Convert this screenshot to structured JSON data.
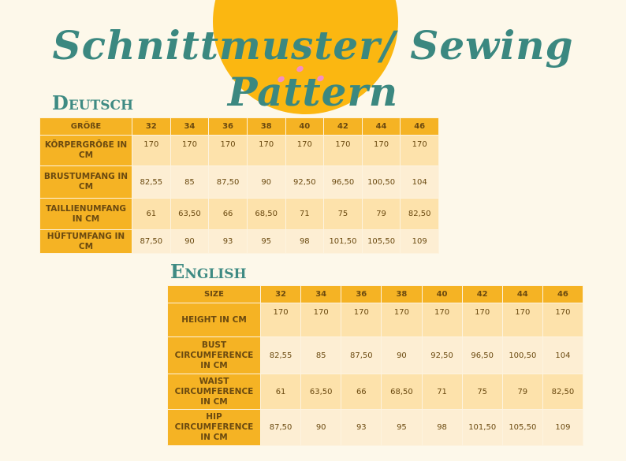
{
  "header": {
    "title": "Schnittmuster/ Sewing Pattern"
  },
  "sections": [
    {
      "heading": "Deutsch",
      "table": {
        "columns": [
          "GRÖßE",
          "32",
          "34",
          "36",
          "38",
          "40",
          "42",
          "44",
          "46"
        ],
        "rows": [
          [
            "KÖRPERGRÖßE IN CM",
            "170",
            "170",
            "170",
            "170",
            "170",
            "170",
            "170",
            "170"
          ],
          [
            "BRUSTUMFANG IN CM",
            "82,55",
            "85",
            "87,50",
            "90",
            "92,50",
            "96,50",
            "100,50",
            "104"
          ],
          [
            "TAILLIENUMFANG IN CM",
            "61",
            "63,50",
            "66",
            "68,50",
            "71",
            "75",
            "79",
            "82,50"
          ],
          [
            "HÜFTUMFANG IN CM",
            "87,50",
            "90",
            "93",
            "95",
            "98",
            "101,50",
            "105,50",
            "109"
          ]
        ]
      }
    },
    {
      "heading": "English",
      "table": {
        "columns": [
          "SIZE",
          "32",
          "34",
          "36",
          "38",
          "40",
          "42",
          "44",
          "46"
        ],
        "rows": [
          [
            "HEIGHT IN CM",
            "170",
            "170",
            "170",
            "170",
            "170",
            "170",
            "170",
            "170"
          ],
          [
            "BUST CIRCUMFERENCE IN CM",
            "82,55",
            "85",
            "87,50",
            "90",
            "92,50",
            "96,50",
            "100,50",
            "104"
          ],
          [
            "WAIST CIRCUMFERENCE IN CM",
            "61",
            "63,50",
            "66",
            "68,50",
            "71",
            "75",
            "79",
            "82,50"
          ],
          [
            "HIP CIRCUMFERENCE IN CM",
            "87,50",
            "90",
            "93",
            "95",
            "98",
            "101,50",
            "105,50",
            "109"
          ]
        ]
      }
    }
  ]
}
